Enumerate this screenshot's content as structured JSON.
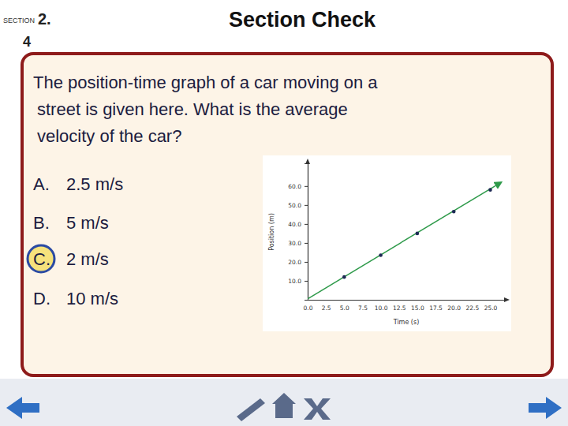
{
  "slide": {
    "section_label": "SECTION",
    "section_number": "2.",
    "section_sub": "4",
    "title": "Section Check",
    "question": [
      "The position-time graph of a car moving on a",
      "street is given here. What is the average",
      "velocity of the car?"
    ],
    "options": [
      {
        "letter": "A.",
        "text": "2.5 m/s"
      },
      {
        "letter": "B.",
        "text": "5 m/s"
      },
      {
        "letter": "C.",
        "text": "2 m/s"
      },
      {
        "letter": "D.",
        "text": "10 m/s"
      }
    ],
    "correct_option": "C."
  },
  "chart_data": {
    "type": "scatter",
    "x_label": "Time (s)",
    "y_label": "Position (m)",
    "xlim": [
      0,
      27
    ],
    "ylim": [
      0,
      72
    ],
    "xticks": [
      {
        "value": 0,
        "label": "0.0"
      },
      {
        "value": 2.5,
        "label": "2.5"
      },
      {
        "value": 5,
        "label": "5.0"
      },
      {
        "value": 7.5,
        "label": "7.5"
      },
      {
        "value": 10,
        "label": "10.0"
      },
      {
        "value": 12.5,
        "label": "12.5"
      },
      {
        "value": 15,
        "label": "15.0"
      },
      {
        "value": 17.5,
        "label": "17.5"
      },
      {
        "value": 20,
        "label": "20.0"
      },
      {
        "value": 22.5,
        "label": "22.5"
      },
      {
        "value": 25,
        "label": "25.0"
      }
    ],
    "yticks": [
      {
        "value": 10,
        "label": "10.0"
      },
      {
        "value": 20,
        "label": "20.0"
      },
      {
        "value": 30,
        "label": "30.0"
      },
      {
        "value": 40,
        "label": "40.0"
      },
      {
        "value": 50,
        "label": "50.0"
      },
      {
        "value": 60,
        "label": "60.0"
      }
    ],
    "grid": false,
    "series": [
      {
        "type": "line",
        "color": "#2e9a4a",
        "marker": "arrow",
        "line_style": "solid",
        "x": [
          0,
          26.5
        ],
        "values": [
          0.5,
          62
        ]
      },
      {
        "type": "scatter",
        "color": "#1f2a55",
        "marker": "circle",
        "x": [
          5,
          10,
          15,
          20,
          25
        ],
        "values": [
          12,
          23.5,
          35,
          46.5,
          58
        ]
      }
    ]
  }
}
